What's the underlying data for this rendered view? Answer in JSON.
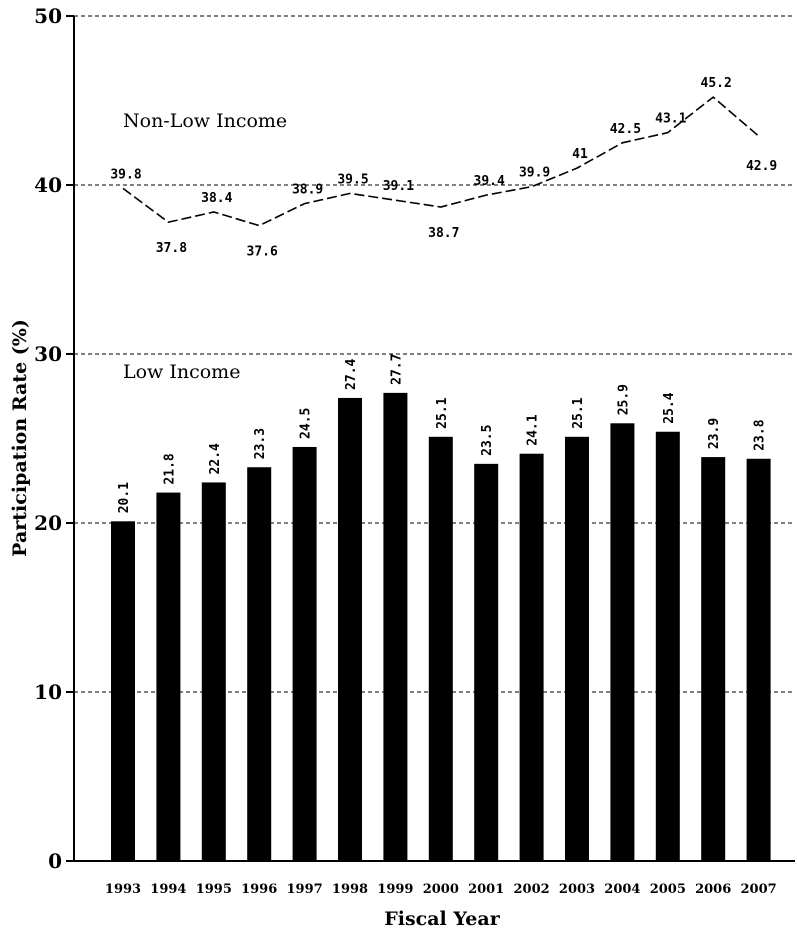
{
  "chart_data": {
    "type": "bar",
    "xlabel": "Fiscal Year",
    "ylabel": "Participation Rate (%)",
    "ylim": [
      0,
      50
    ],
    "yticks": [
      0,
      10,
      20,
      30,
      40,
      50
    ],
    "grid": true,
    "categories": [
      "1993",
      "1994",
      "1995",
      "1996",
      "1997",
      "1998",
      "1999",
      "2000",
      "2001",
      "2002",
      "2003",
      "2004",
      "2005",
      "2006",
      "2007"
    ],
    "series": [
      {
        "name": "Low Income",
        "kind": "bar",
        "values": [
          20.1,
          21.8,
          22.4,
          23.3,
          24.5,
          27.4,
          27.7,
          25.1,
          23.5,
          24.1,
          25.1,
          25.9,
          25.4,
          23.9,
          23.8
        ],
        "labels": [
          "20.1",
          "21.8",
          "22.4",
          "23.3",
          "24.5",
          "27.4",
          "27.7",
          "25.1",
          "23.5",
          "24.1",
          "25.1",
          "25.9",
          "25.4",
          "23.9",
          "23.8"
        ]
      },
      {
        "name": "Non-Low Income",
        "kind": "line",
        "values": [
          39.8,
          37.8,
          38.4,
          37.6,
          38.9,
          39.5,
          39.1,
          38.7,
          39.4,
          39.9,
          41,
          42.5,
          43.1,
          45.2,
          42.9
        ],
        "labels": [
          "39.8",
          "37.8",
          "38.4",
          "37.6",
          "38.9",
          "39.5",
          "39.1",
          "38.7",
          "39.4",
          "39.9",
          "41",
          "42.5",
          "43.1",
          "45.2",
          "42.9"
        ]
      }
    ]
  }
}
